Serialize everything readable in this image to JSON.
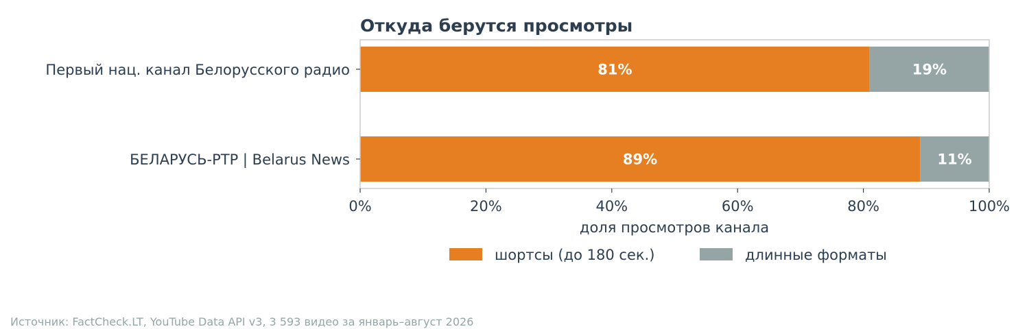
{
  "chart_data": {
    "type": "bar",
    "orientation": "horizontal",
    "stacked": true,
    "title": "Откуда берутся просмотры",
    "xlabel": "доля просмотров канала",
    "ylabel": "",
    "xlim": [
      0,
      100
    ],
    "x_ticks": [
      "0%",
      "20%",
      "40%",
      "60%",
      "80%",
      "100%"
    ],
    "categories": [
      "Первый нац. канал Белорусского радио",
      "БЕЛАРУСЬ-РТР | Belarus News"
    ],
    "series": [
      {
        "name": "шортсы (до 180 сек.)",
        "color": "#e67e22",
        "values": [
          81,
          89
        ],
        "labels": [
          "81%",
          "89%"
        ]
      },
      {
        "name": "длинные форматы",
        "color": "#95a5a6",
        "values": [
          19,
          11
        ],
        "labels": [
          "19%",
          "11%"
        ]
      }
    ],
    "grid": false,
    "legend_position": "bottom"
  },
  "source": "Источник: FactCheck.LT, YouTube Data API v3, 3 593 видео за январь–август 2026"
}
